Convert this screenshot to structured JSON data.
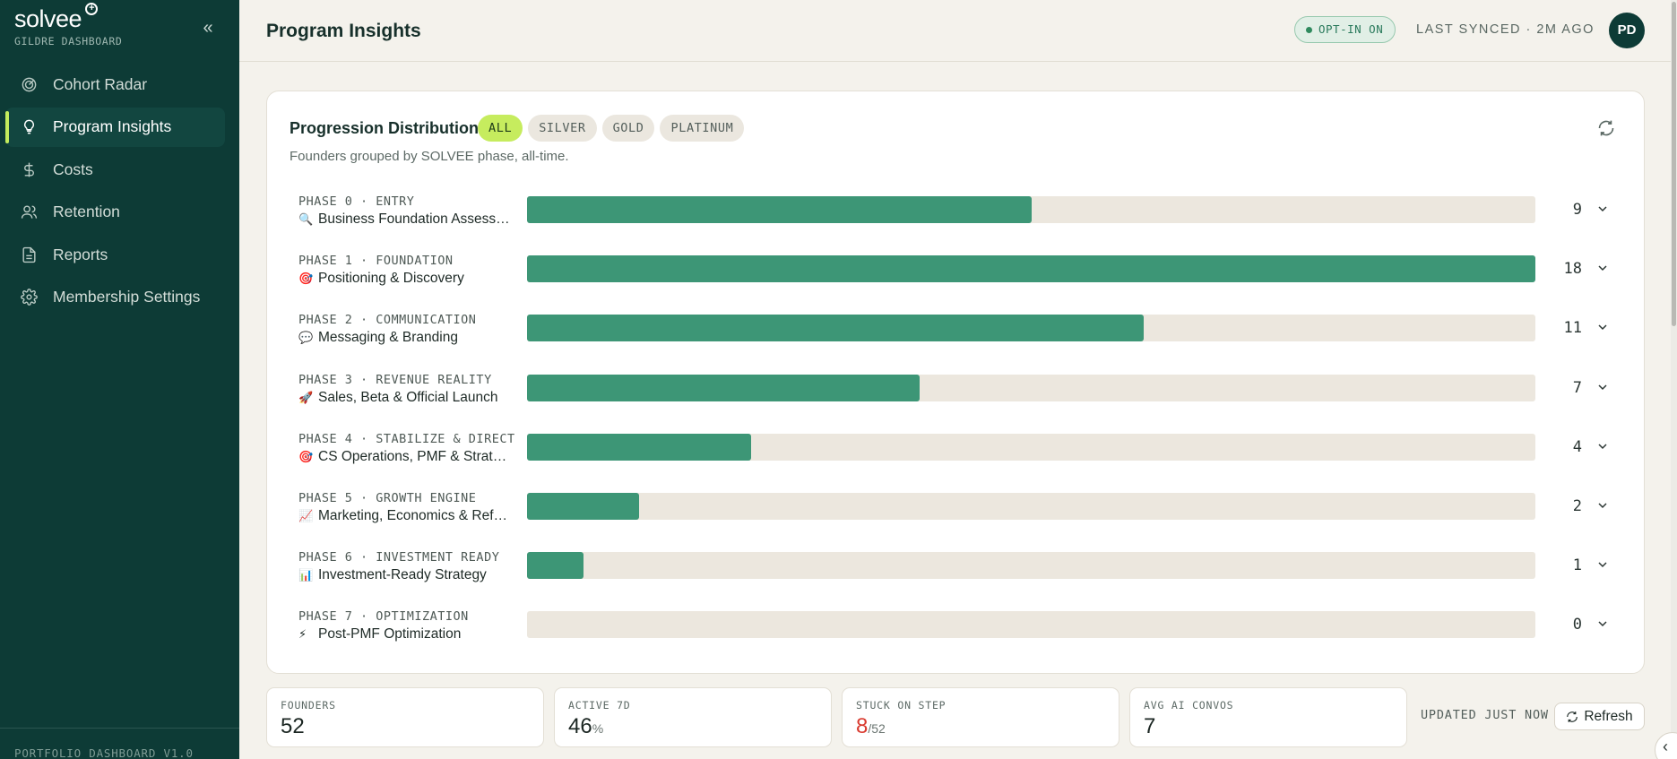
{
  "sidebar": {
    "brand": "solvee",
    "subtitle": "GILDRE DASHBOARD",
    "collapse_label": "«",
    "items": [
      {
        "label": "Cohort Radar",
        "icon": "radar-icon",
        "active": false
      },
      {
        "label": "Program Insights",
        "icon": "lightbulb-icon",
        "active": true
      },
      {
        "label": "Costs",
        "icon": "dollar-icon",
        "active": false
      },
      {
        "label": "Retention",
        "icon": "users-icon",
        "active": false
      },
      {
        "label": "Reports",
        "icon": "file-icon",
        "active": false
      },
      {
        "label": "Membership Settings",
        "icon": "gear-icon",
        "active": false
      }
    ],
    "footer": "PORTFOLIO DASHBOARD V1.0"
  },
  "header": {
    "title": "Program Insights",
    "optin": "OPT-IN ON",
    "synced": "LAST SYNCED · 2M AGO",
    "avatar": "PD"
  },
  "card": {
    "title": "Progression Distribution",
    "filters": [
      "ALL",
      "SILVER",
      "GOLD",
      "PLATINUM"
    ],
    "active_filter": "ALL",
    "subtitle": "Founders grouped by SOLVEE phase, all-time."
  },
  "chart_data": {
    "type": "bar",
    "max": 18,
    "categories": [
      "PHASE 0 · ENTRY",
      "PHASE 1 · FOUNDATION",
      "PHASE 2 · COMMUNICATION",
      "PHASE 3 · REVENUE REALITY",
      "PHASE 4 · STABILIZE & DIRECT",
      "PHASE 5 · GROWTH ENGINE",
      "PHASE 6 · INVESTMENT READY",
      "PHASE 7 · OPTIMIZATION"
    ],
    "names": [
      "Business Foundation Assess…",
      "Positioning & Discovery",
      "Messaging & Branding",
      "Sales, Beta & Official Launch",
      "CS Operations, PMF & Strate…",
      "Marketing, Economics & Refe…",
      "Investment-Ready Strategy",
      "Post-PMF Optimization"
    ],
    "emojis": [
      "🔍",
      "🎯",
      "💬",
      "🚀",
      "🎯",
      "📈",
      "📊",
      "⚡"
    ],
    "values": [
      9,
      18,
      11,
      7,
      4,
      2,
      1,
      0
    ],
    "bar_color": "#3d9676",
    "track_color": "#ece7de"
  },
  "stats": [
    {
      "label": "FOUNDERS",
      "value": "52",
      "unit": ""
    },
    {
      "label": "ACTIVE 7D",
      "value": "46",
      "unit": "%"
    },
    {
      "label": "STUCK ON STEP",
      "value": "8",
      "unit": "/52"
    },
    {
      "label": "AVG AI CONVOS",
      "value": "7",
      "unit": ""
    }
  ],
  "updated": "UPDATED JUST NOW",
  "refresh_label": "Refresh"
}
